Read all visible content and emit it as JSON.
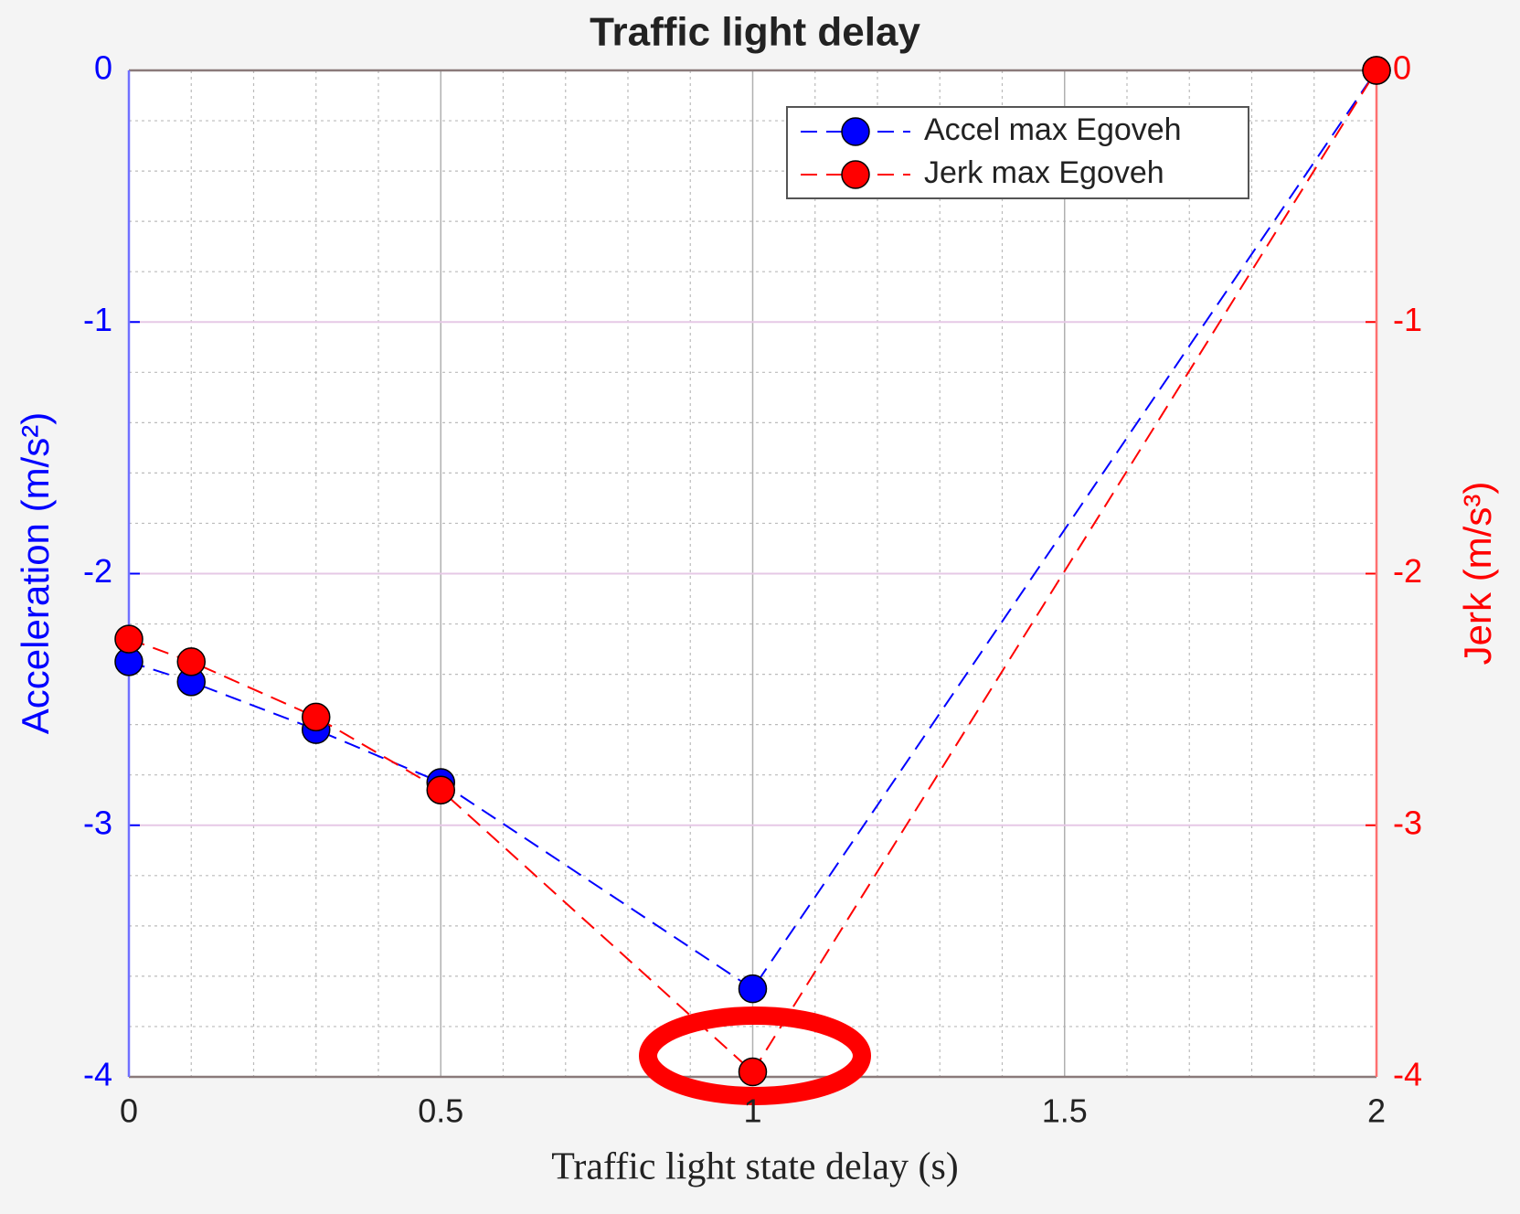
{
  "chart_data": {
    "type": "line",
    "title": "Traffic light delay",
    "x_label": "Traffic light state delay (s)",
    "y_label": "Acceleration (m/s²)",
    "y2_label": "Jerk (m/s³)",
    "x": [
      0,
      0.1,
      0.3,
      0.5,
      1,
      2
    ],
    "series": [
      {
        "name": "Accel max Egoveh",
        "color": "#0000ff",
        "values": [
          -2.35,
          -2.43,
          -2.62,
          -2.83,
          -3.65,
          0
        ]
      },
      {
        "name": "Jerk max Egoveh",
        "color": "#ff0000",
        "axis": "y2",
        "values": [
          -2.26,
          -2.35,
          -2.57,
          -2.86,
          -3.98,
          0
        ]
      }
    ],
    "xlim": [
      0,
      2
    ],
    "xticks": [
      0,
      0.5,
      1,
      1.5,
      2
    ],
    "ylim": [
      -4,
      0
    ],
    "yticks": [
      -4,
      -3,
      -2,
      -1,
      0
    ],
    "y2lim": [
      -4,
      0
    ],
    "y2ticks": [
      -4,
      -3,
      -2,
      -1,
      0
    ],
    "grid": true,
    "minor_grid": true,
    "line_style": "dashed",
    "legend": "upper right"
  }
}
